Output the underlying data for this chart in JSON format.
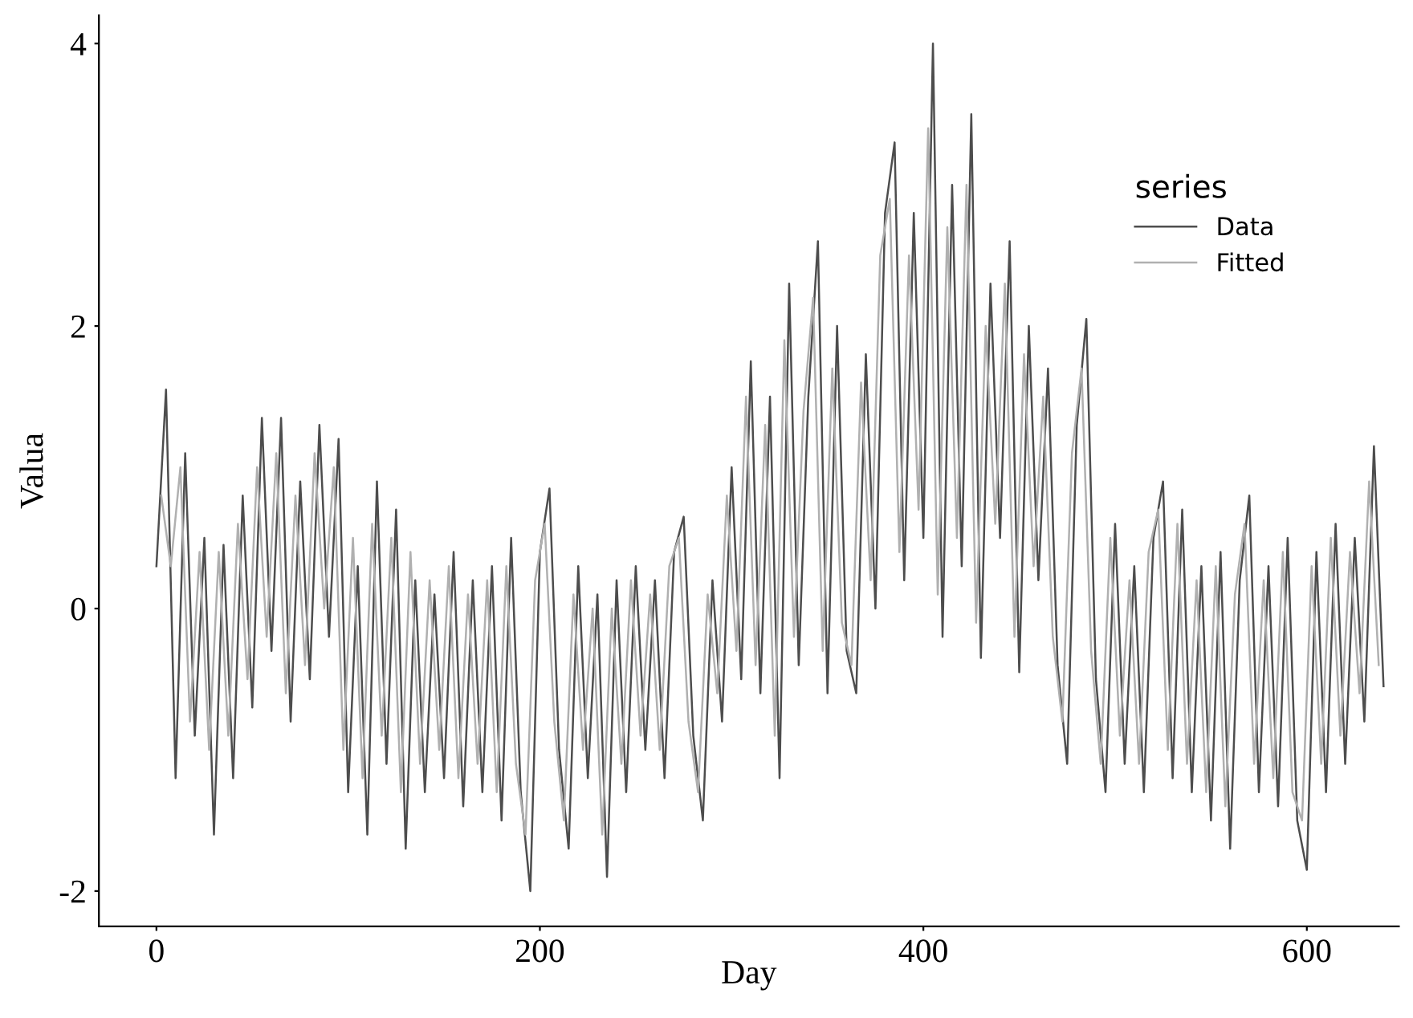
{
  "chart_data": {
    "type": "line",
    "xlabel": "Day",
    "ylabel": "Valua",
    "legend_title": "series",
    "legend": "top right",
    "grid": false,
    "xlim": [
      -30,
      648
    ],
    "ylim": [
      -2.25,
      4.2
    ],
    "xticks": [
      0,
      200,
      400,
      600
    ],
    "yticks": [
      -2,
      0,
      2,
      4
    ],
    "series": [
      {
        "name": "Data",
        "color": "#4d4d4d",
        "x": [
          0,
          5,
          10,
          15,
          20,
          25,
          30,
          35,
          40,
          45,
          50,
          55,
          60,
          65,
          70,
          75,
          80,
          85,
          90,
          95,
          100,
          105,
          110,
          115,
          120,
          125,
          130,
          135,
          140,
          145,
          150,
          155,
          160,
          165,
          170,
          175,
          180,
          185,
          190,
          195,
          200,
          205,
          210,
          215,
          220,
          225,
          230,
          235,
          240,
          245,
          250,
          255,
          260,
          265,
          270,
          275,
          280,
          285,
          290,
          295,
          300,
          305,
          310,
          315,
          320,
          325,
          330,
          335,
          340,
          345,
          350,
          355,
          360,
          365,
          370,
          375,
          380,
          385,
          390,
          395,
          400,
          405,
          410,
          415,
          420,
          425,
          430,
          435,
          440,
          445,
          450,
          455,
          460,
          465,
          470,
          475,
          480,
          485,
          490,
          495,
          500,
          505,
          510,
          515,
          520,
          525,
          530,
          535,
          540,
          545,
          550,
          555,
          560,
          565,
          570,
          575,
          580,
          585,
          590,
          595,
          600,
          605,
          610,
          615,
          620,
          625,
          630,
          635,
          640
        ],
        "values": [
          0.3,
          1.55,
          -1.2,
          1.1,
          -0.9,
          0.5,
          -1.6,
          0.45,
          -1.2,
          0.8,
          -0.7,
          1.35,
          -0.3,
          1.35,
          -0.8,
          0.9,
          -0.5,
          1.3,
          -0.2,
          1.2,
          -1.3,
          0.3,
          -1.6,
          0.9,
          -1.1,
          0.7,
          -1.7,
          0.2,
          -1.3,
          0.1,
          -1.2,
          0.4,
          -1.4,
          0.2,
          -1.3,
          0.3,
          -1.5,
          0.5,
          -1.3,
          -2.0,
          0.4,
          0.85,
          -1.0,
          -1.7,
          0.3,
          -1.2,
          0.1,
          -1.9,
          0.2,
          -1.3,
          0.3,
          -1.0,
          0.2,
          -1.2,
          0.4,
          0.65,
          -0.9,
          -1.5,
          0.2,
          -0.8,
          1.0,
          -0.5,
          1.75,
          -0.6,
          1.5,
          -1.2,
          2.3,
          -0.4,
          1.5,
          2.6,
          -0.6,
          2.0,
          -0.3,
          -0.6,
          1.8,
          0.0,
          2.8,
          3.3,
          0.2,
          2.8,
          0.5,
          4.0,
          -0.2,
          3.0,
          0.3,
          3.5,
          -0.35,
          2.3,
          0.5,
          2.6,
          -0.45,
          2.0,
          0.2,
          1.7,
          -0.4,
          -1.1,
          1.3,
          2.05,
          -0.5,
          -1.3,
          0.6,
          -1.1,
          0.3,
          -1.3,
          0.5,
          0.9,
          -1.2,
          0.7,
          -1.3,
          0.3,
          -1.5,
          0.4,
          -1.7,
          0.2,
          0.8,
          -1.3,
          0.3,
          -1.4,
          0.5,
          -1.5,
          -1.85,
          0.4,
          -1.3,
          0.6,
          -1.1,
          0.5,
          -0.8,
          1.15,
          -0.55
        ]
      },
      {
        "name": "Fitted",
        "color": "#b0b0b0",
        "x": [
          2.5,
          7.5,
          12.5,
          17.5,
          22.5,
          27.5,
          32.5,
          37.5,
          42.5,
          47.5,
          52.5,
          57.5,
          62.5,
          67.5,
          72.5,
          77.5,
          82.5,
          87.5,
          92.5,
          97.5,
          102.5,
          107.5,
          112.5,
          117.5,
          122.5,
          127.5,
          132.5,
          137.5,
          142.5,
          147.5,
          152.5,
          157.5,
          162.5,
          167.5,
          172.5,
          177.5,
          182.5,
          187.5,
          192.5,
          197.5,
          202.5,
          207.5,
          212.5,
          217.5,
          222.5,
          227.5,
          232.5,
          237.5,
          242.5,
          247.5,
          252.5,
          257.5,
          262.5,
          267.5,
          272.5,
          277.5,
          282.5,
          287.5,
          292.5,
          297.5,
          302.5,
          307.5,
          312.5,
          317.5,
          322.5,
          327.5,
          332.5,
          337.5,
          342.5,
          347.5,
          352.5,
          357.5,
          362.5,
          367.5,
          372.5,
          377.5,
          382.5,
          387.5,
          392.5,
          397.5,
          402.5,
          407.5,
          412.5,
          417.5,
          422.5,
          427.5,
          432.5,
          437.5,
          442.5,
          447.5,
          452.5,
          457.5,
          462.5,
          467.5,
          472.5,
          477.5,
          482.5,
          487.5,
          492.5,
          497.5,
          502.5,
          507.5,
          512.5,
          517.5,
          522.5,
          527.5,
          532.5,
          537.5,
          542.5,
          547.5,
          552.5,
          557.5,
          562.5,
          567.5,
          572.5,
          577.5,
          582.5,
          587.5,
          592.5,
          597.5,
          602.5,
          607.5,
          612.5,
          617.5,
          622.5,
          627.5,
          632.5,
          637.5
        ],
        "values": [
          0.8,
          0.3,
          1.0,
          -0.8,
          0.4,
          -1.0,
          0.4,
          -0.9,
          0.6,
          -0.5,
          1.0,
          -0.2,
          1.1,
          -0.6,
          0.8,
          -0.4,
          1.1,
          0.0,
          1.0,
          -1.0,
          0.5,
          -1.2,
          0.6,
          -0.9,
          0.5,
          -1.3,
          0.4,
          -1.1,
          0.2,
          -1.0,
          0.3,
          -1.2,
          0.1,
          -1.1,
          0.2,
          -1.3,
          0.3,
          -1.1,
          -1.6,
          0.2,
          0.6,
          -0.8,
          -1.5,
          0.1,
          -1.0,
          0.0,
          -1.6,
          0.0,
          -1.1,
          0.2,
          -0.9,
          0.1,
          -1.0,
          0.3,
          0.5,
          -0.8,
          -1.3,
          0.1,
          -0.6,
          0.8,
          -0.3,
          1.5,
          -0.4,
          1.3,
          -0.9,
          1.9,
          -0.2,
          1.4,
          2.2,
          -0.3,
          1.7,
          -0.1,
          -0.4,
          1.6,
          0.2,
          2.5,
          2.9,
          0.4,
          2.5,
          0.7,
          3.4,
          0.1,
          2.7,
          0.5,
          3.0,
          -0.1,
          2.0,
          0.6,
          2.3,
          -0.2,
          1.8,
          0.3,
          1.5,
          -0.2,
          -0.8,
          1.1,
          1.7,
          -0.3,
          -1.1,
          0.5,
          -0.9,
          0.2,
          -1.1,
          0.4,
          0.7,
          -1.0,
          0.6,
          -1.1,
          0.2,
          -1.3,
          0.3,
          -1.4,
          0.1,
          0.6,
          -1.1,
          0.2,
          -1.2,
          0.4,
          -1.3,
          -1.5,
          0.3,
          -1.1,
          0.5,
          -0.9,
          0.4,
          -0.6,
          0.9,
          -0.4
        ]
      }
    ]
  }
}
